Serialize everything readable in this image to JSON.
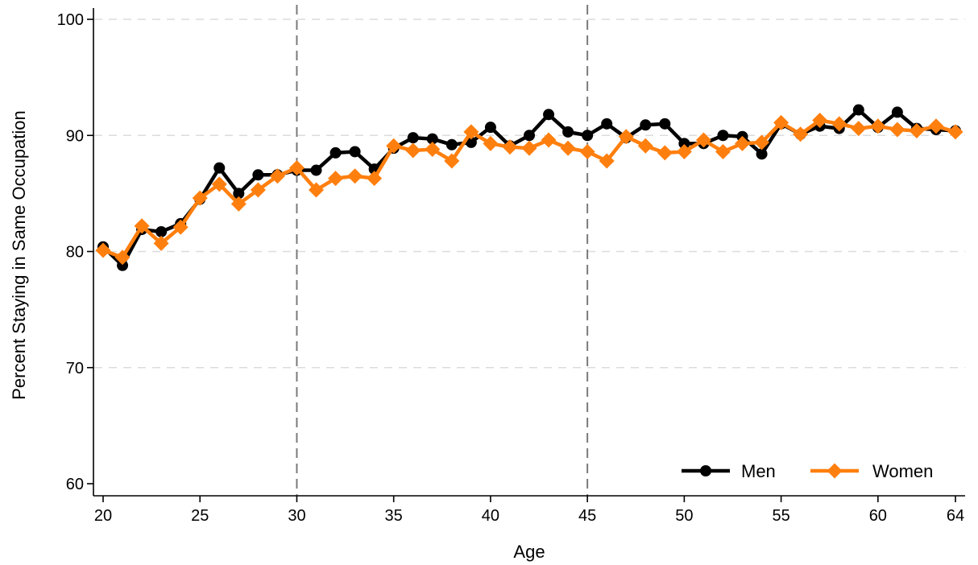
{
  "chart_data": {
    "type": "line",
    "title": "",
    "xlabel": "Age",
    "ylabel": "Percent Staying in Same Occupation",
    "xlim": [
      20,
      64
    ],
    "ylim": [
      60,
      100
    ],
    "x_ticks": [
      20,
      25,
      30,
      35,
      40,
      45,
      50,
      55,
      60,
      64
    ],
    "y_ticks": [
      60,
      70,
      80,
      90,
      100
    ],
    "grid": "horizontal dashed",
    "reference_lines_x": [
      30,
      45
    ],
    "legend_position": "bottom-right",
    "x": [
      20,
      21,
      22,
      23,
      24,
      25,
      26,
      27,
      28,
      29,
      30,
      31,
      32,
      33,
      34,
      35,
      36,
      37,
      38,
      39,
      40,
      41,
      42,
      43,
      44,
      45,
      46,
      47,
      48,
      49,
      50,
      51,
      52,
      53,
      54,
      55,
      56,
      57,
      58,
      59,
      60,
      61,
      62,
      63,
      64
    ],
    "series": [
      {
        "name": "Men",
        "color": "#000000",
        "marker": "circle",
        "values": [
          80.4,
          78.8,
          81.9,
          81.7,
          82.4,
          84.5,
          87.2,
          85.0,
          86.6,
          86.6,
          87.0,
          87.0,
          88.5,
          88.6,
          87.1,
          88.9,
          89.8,
          89.7,
          89.2,
          89.4,
          90.7,
          89.1,
          90.0,
          91.8,
          90.3,
          90.0,
          91.0,
          89.8,
          90.9,
          91.0,
          89.3,
          89.3,
          90.0,
          89.9,
          88.4,
          91.0,
          90.1,
          90.8,
          90.6,
          92.2,
          90.7,
          92.0,
          90.6,
          90.5,
          90.4
        ]
      },
      {
        "name": "Women",
        "color": "#ff7f0e",
        "marker": "diamond",
        "values": [
          80.1,
          79.5,
          82.2,
          80.7,
          82.1,
          84.6,
          85.8,
          84.1,
          85.3,
          86.5,
          87.2,
          85.3,
          86.3,
          86.5,
          86.3,
          89.1,
          88.7,
          88.8,
          87.8,
          90.3,
          89.3,
          89.0,
          88.9,
          89.6,
          88.9,
          88.6,
          87.8,
          89.9,
          89.1,
          88.5,
          88.6,
          89.6,
          88.6,
          89.3,
          89.4,
          91.1,
          90.1,
          91.3,
          91.0,
          90.6,
          90.8,
          90.5,
          90.4,
          90.8,
          90.3
        ]
      }
    ]
  }
}
